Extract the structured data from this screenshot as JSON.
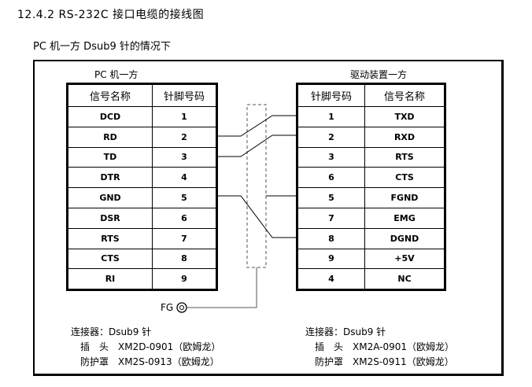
{
  "section_title": "12.4.2  RS-232C 接口电缆的接线图",
  "subtitle": "PC 机一方 Dsub9 针的情况下",
  "left": {
    "caption": "PC 机一方",
    "headers": [
      "信号名称",
      "针脚号码"
    ],
    "rows": [
      [
        "DCD",
        "1"
      ],
      [
        "RD",
        "2"
      ],
      [
        "TD",
        "3"
      ],
      [
        "DTR",
        "4"
      ],
      [
        "GND",
        "5"
      ],
      [
        "DSR",
        "6"
      ],
      [
        "RTS",
        "7"
      ],
      [
        "CTS",
        "8"
      ],
      [
        "RI",
        "9"
      ]
    ]
  },
  "right": {
    "caption": "驱动装置一方",
    "headers": [
      "针脚号码",
      "信号名称"
    ],
    "rows": [
      [
        "1",
        "TXD"
      ],
      [
        "2",
        "RXD"
      ],
      [
        "3",
        "RTS"
      ],
      [
        "6",
        "CTS"
      ],
      [
        "5",
        "FGND"
      ],
      [
        "7",
        "EMG"
      ],
      [
        "8",
        "DGND"
      ],
      [
        "9",
        "+5V"
      ],
      [
        "4",
        "NC"
      ]
    ]
  },
  "fg_label": "FG",
  "notes_left": {
    "connector": "连接器：Dsub9 针",
    "plug": "插　头　XM2D-0901（欧姆龙）",
    "cover": "防护罩　XM2S-0913（欧姆龙）"
  },
  "notes_right": {
    "connector": "连接器：Dsub9 针",
    "plug": "插　头　XM2A-0901（欧姆龙）",
    "cover": "防护罩　XM2S-0911（欧姆龙）"
  }
}
